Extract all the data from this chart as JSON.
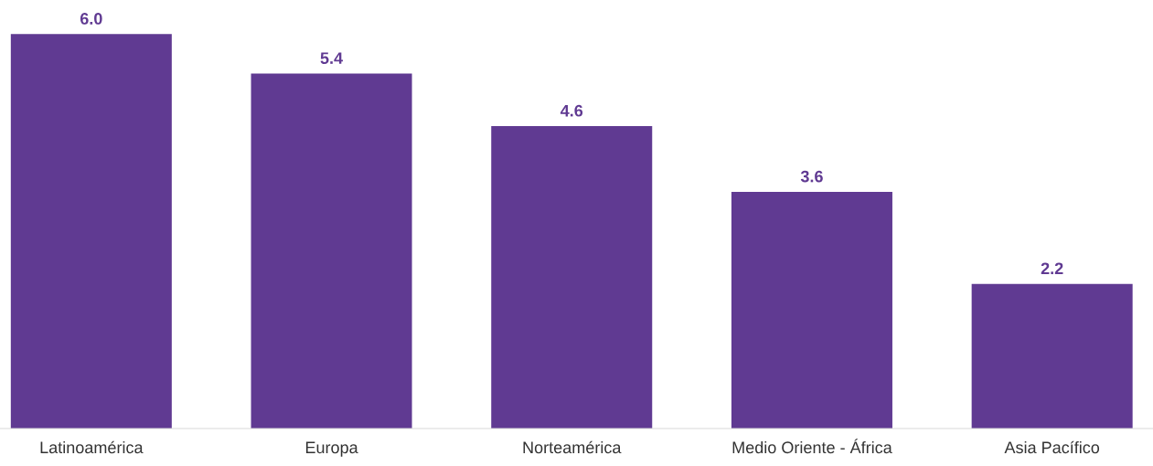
{
  "chart_data": {
    "type": "bar",
    "categories": [
      "Latinoamérica",
      "Europa",
      "Norteamérica",
      "Medio Oriente - África",
      "Asia Pacífico"
    ],
    "values": [
      6.0,
      5.4,
      4.6,
      3.6,
      2.2
    ],
    "value_labels": [
      "6.0",
      "5.4",
      "4.6",
      "3.6",
      "2.2"
    ],
    "color": "#603a92",
    "grid": false,
    "legend": false,
    "tick_labels": "x"
  }
}
